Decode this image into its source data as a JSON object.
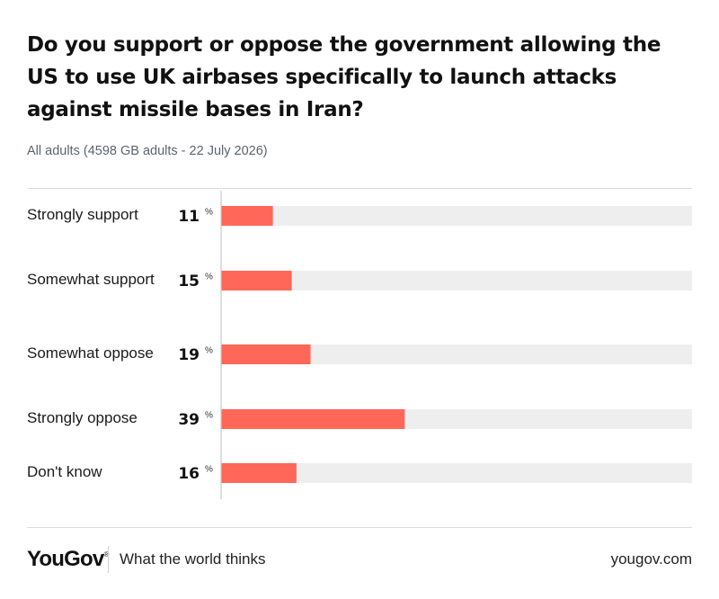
{
  "header": {
    "title": "Do you support or oppose the government allowing the US to use UK airbases specifically to launch attacks against missile bases in Iran?",
    "subtitle": "All adults (4598 GB adults - 22 July 2026)"
  },
  "chart_data": {
    "type": "bar",
    "orientation": "horizontal",
    "categories": [
      "Strongly support",
      "Somewhat support",
      "Somewhat oppose",
      "Strongly oppose",
      "Don't know"
    ],
    "values": [
      11,
      15,
      19,
      39,
      16
    ],
    "unit": "%",
    "xlim": [
      0,
      100
    ],
    "bar_color": "#ff6859",
    "track_color": "#eeeeef",
    "grid": false
  },
  "footer": {
    "brand": "YouGov",
    "brand_mark": "®",
    "tagline": "What the world thinks",
    "url": "yougov.com"
  }
}
